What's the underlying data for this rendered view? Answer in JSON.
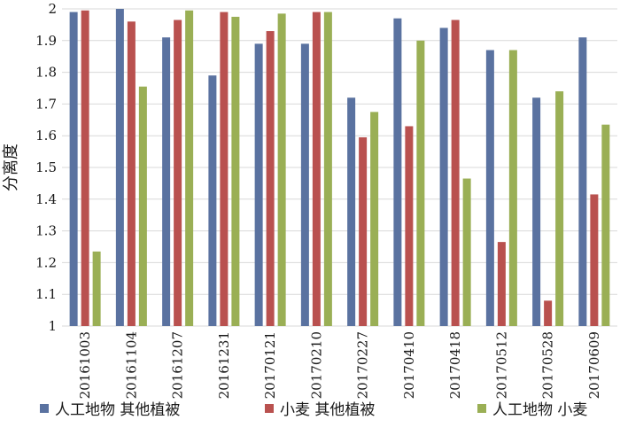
{
  "chart_data": {
    "type": "bar",
    "title": "",
    "xlabel": "",
    "ylabel": "分离度",
    "ylim": [
      1,
      2
    ],
    "yticks": [
      "1",
      "1.1",
      "1.2",
      "1.3",
      "1.4",
      "1.5",
      "1.6",
      "1.7",
      "1.8",
      "1.9",
      "2"
    ],
    "grid": true,
    "legend_position": "bottom",
    "categories": [
      "20161003",
      "20161104",
      "20161207",
      "20161231",
      "20170121",
      "20170210",
      "20170227",
      "20170410",
      "20170418",
      "20170512",
      "20170528",
      "20170609"
    ],
    "series": [
      {
        "name": "人工地物  其他植被",
        "color": "#5a72a0",
        "values": [
          1.99,
          2.0,
          1.91,
          1.79,
          1.89,
          1.89,
          1.72,
          1.97,
          1.94,
          1.87,
          1.72,
          1.91
        ]
      },
      {
        "name": "小麦  其他植被",
        "color": "#b9514f",
        "values": [
          1.995,
          1.96,
          1.965,
          1.99,
          1.93,
          1.99,
          1.595,
          1.63,
          1.965,
          1.265,
          1.08,
          1.415
        ]
      },
      {
        "name": "人工地物  小麦",
        "color": "#9aaf55",
        "values": [
          1.235,
          1.755,
          1.995,
          1.975,
          1.985,
          1.99,
          1.675,
          1.9,
          1.465,
          1.87,
          1.74,
          1.635
        ]
      }
    ]
  }
}
